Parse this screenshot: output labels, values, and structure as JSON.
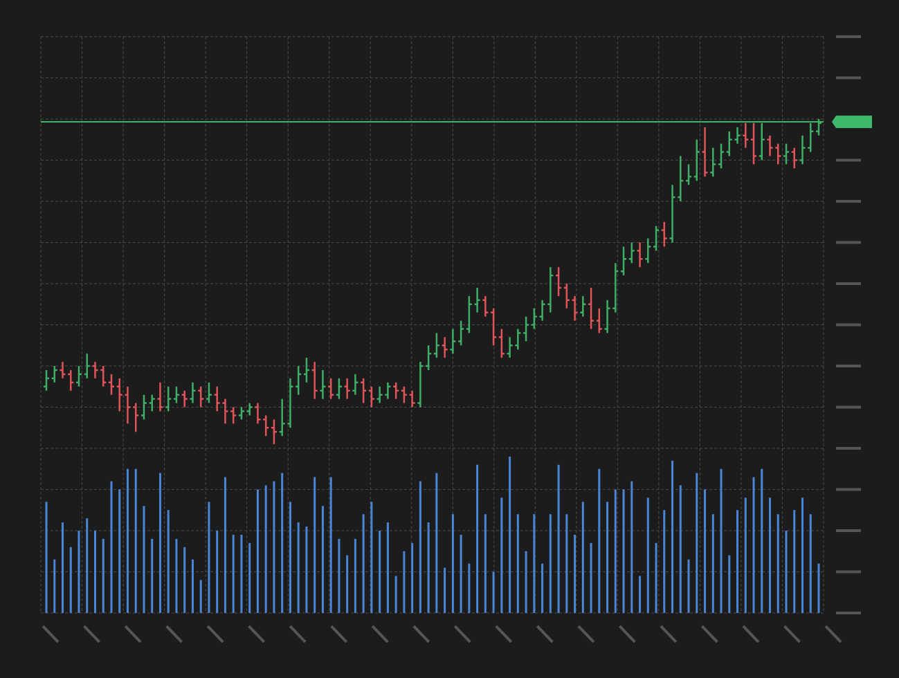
{
  "chart_data": {
    "type": "ohlc",
    "ylim": [
      0,
      14
    ],
    "yticks": [
      0,
      1,
      2,
      3,
      4,
      5,
      6,
      7,
      8,
      9,
      10,
      11,
      12,
      13,
      14
    ],
    "grid": true,
    "up_color": "#3fae66",
    "down_color": "#e0545a",
    "volume_color": "#4a86d8",
    "last_price": 11.93,
    "last_price_color": "#3fba6c",
    "open": [
      5.5,
      5.7,
      5.9,
      5.8,
      5.6,
      5.8,
      6.0,
      5.9,
      5.6,
      5.5,
      5.3,
      5.0,
      4.8,
      5.1,
      5.2,
      5.0,
      5.2,
      5.3,
      5.2,
      5.4,
      5.2,
      5.3,
      5.1,
      4.9,
      4.8,
      4.9,
      5.0,
      4.7,
      4.5,
      4.4,
      4.6,
      5.5,
      5.8,
      5.9,
      5.4,
      5.5,
      5.3,
      5.5,
      5.4,
      5.6,
      5.4,
      5.2,
      5.3,
      5.5,
      5.4,
      5.3,
      5.1,
      6.0,
      6.3,
      6.5,
      6.4,
      6.6,
      6.9,
      7.5,
      7.6,
      7.3,
      6.7,
      6.3,
      6.5,
      6.8,
      7.0,
      7.2,
      7.5,
      8.2,
      7.9,
      7.6,
      7.3,
      7.5,
      7.1,
      6.9,
      7.4,
      8.3,
      8.6,
      8.8,
      8.6,
      8.9,
      9.3,
      9.1,
      10.1,
      10.5,
      10.6,
      11.2,
      10.7,
      10.9,
      11.2,
      11.5,
      11.6,
      11.5,
      11.1,
      11.5,
      11.3,
      11.1,
      11.2,
      11.0,
      11.3,
      11.7
    ],
    "high": [
      5.9,
      6.0,
      6.1,
      5.9,
      6.0,
      6.3,
      6.1,
      6.0,
      5.8,
      5.7,
      5.5,
      5.1,
      5.3,
      5.3,
      5.6,
      5.5,
      5.5,
      5.4,
      5.6,
      5.5,
      5.6,
      5.5,
      5.2,
      5.0,
      5.0,
      5.1,
      5.1,
      4.8,
      4.7,
      5.2,
      5.7,
      6.0,
      6.2,
      6.1,
      5.9,
      5.7,
      5.7,
      5.7,
      5.8,
      5.7,
      5.5,
      5.5,
      5.6,
      5.6,
      5.5,
      5.4,
      6.1,
      6.5,
      6.8,
      6.7,
      6.9,
      7.1,
      7.7,
      7.9,
      7.7,
      7.4,
      6.9,
      6.7,
      6.9,
      7.2,
      7.4,
      7.6,
      8.4,
      8.4,
      8.0,
      7.7,
      7.7,
      7.9,
      7.4,
      7.6,
      8.5,
      8.9,
      9.0,
      9.0,
      9.1,
      9.4,
      9.5,
      10.4,
      11.1,
      10.9,
      11.5,
      11.8,
      11.3,
      11.4,
      11.7,
      11.8,
      11.9,
      11.9,
      11.9,
      11.6,
      11.4,
      11.4,
      11.3,
      11.6,
      11.9,
      12.0
    ],
    "low": [
      5.4,
      5.6,
      5.7,
      5.4,
      5.5,
      5.7,
      5.7,
      5.5,
      5.3,
      4.9,
      4.6,
      4.4,
      4.7,
      4.9,
      4.9,
      4.9,
      5.1,
      5.0,
      5.1,
      5.0,
      5.1,
      4.9,
      4.6,
      4.6,
      4.7,
      4.8,
      4.6,
      4.3,
      4.1,
      4.3,
      4.5,
      5.3,
      5.6,
      5.2,
      5.2,
      5.2,
      5.2,
      5.2,
      5.3,
      5.1,
      5.0,
      5.1,
      5.2,
      5.2,
      5.1,
      5.0,
      5.0,
      5.9,
      6.2,
      6.2,
      6.3,
      6.5,
      6.8,
      7.3,
      7.2,
      6.5,
      6.2,
      6.2,
      6.4,
      6.6,
      6.9,
      7.1,
      7.3,
      7.7,
      7.4,
      7.1,
      7.2,
      6.9,
      6.8,
      6.8,
      7.3,
      8.2,
      8.5,
      8.4,
      8.5,
      8.8,
      8.9,
      9.0,
      10.0,
      10.4,
      10.5,
      10.6,
      10.6,
      10.8,
      11.1,
      11.4,
      11.3,
      10.9,
      11.0,
      11.1,
      10.9,
      10.9,
      10.8,
      10.9,
      11.2,
      11.6
    ],
    "close": [
      5.7,
      5.9,
      5.8,
      5.6,
      5.8,
      6.0,
      5.9,
      5.6,
      5.5,
      5.3,
      5.0,
      4.8,
      5.1,
      5.2,
      5.0,
      5.2,
      5.3,
      5.2,
      5.4,
      5.2,
      5.3,
      5.1,
      4.9,
      4.8,
      4.9,
      5.0,
      4.7,
      4.5,
      4.4,
      4.6,
      5.5,
      5.8,
      5.9,
      5.4,
      5.5,
      5.3,
      5.5,
      5.4,
      5.6,
      5.4,
      5.2,
      5.3,
      5.5,
      5.4,
      5.3,
      5.1,
      6.0,
      6.3,
      6.5,
      6.4,
      6.6,
      6.9,
      7.5,
      7.6,
      7.3,
      6.7,
      6.3,
      6.5,
      6.8,
      7.0,
      7.2,
      7.5,
      8.2,
      7.9,
      7.6,
      7.3,
      7.5,
      7.1,
      6.9,
      7.4,
      8.3,
      8.6,
      8.8,
      8.6,
      8.9,
      9.3,
      9.1,
      10.1,
      10.5,
      10.6,
      11.2,
      10.7,
      10.9,
      11.2,
      11.5,
      11.6,
      11.5,
      11.1,
      11.5,
      11.3,
      11.1,
      11.2,
      11.0,
      11.3,
      11.7,
      11.9
    ],
    "volume": [
      2.7,
      1.3,
      2.2,
      1.6,
      2.0,
      2.3,
      2.0,
      1.8,
      3.2,
      3.0,
      3.5,
      3.5,
      2.6,
      1.8,
      3.4,
      2.5,
      1.8,
      1.6,
      1.3,
      0.8,
      2.7,
      2.0,
      3.3,
      1.9,
      1.9,
      1.7,
      3.0,
      3.1,
      3.2,
      3.4,
      2.7,
      2.2,
      2.1,
      3.3,
      2.6,
      3.3,
      1.8,
      1.4,
      1.8,
      2.4,
      2.7,
      2.0,
      2.2,
      0.9,
      1.5,
      1.7,
      3.2,
      2.2,
      3.4,
      1.1,
      2.4,
      1.9,
      1.2,
      3.6,
      2.4,
      1.0,
      2.8,
      3.8,
      2.4,
      1.5,
      2.4,
      1.2,
      2.4,
      3.6,
      2.4,
      1.9,
      2.7,
      1.7,
      3.5,
      2.7,
      3.0,
      3.0,
      3.2,
      0.9,
      2.8,
      1.7,
      2.5,
      3.7,
      3.1,
      1.3,
      3.4,
      3.0,
      2.4,
      3.5,
      1.4,
      2.5,
      2.8,
      3.3,
      3.5,
      2.8,
      2.4,
      2.0,
      2.5,
      2.8,
      2.4,
      1.2
    ]
  }
}
